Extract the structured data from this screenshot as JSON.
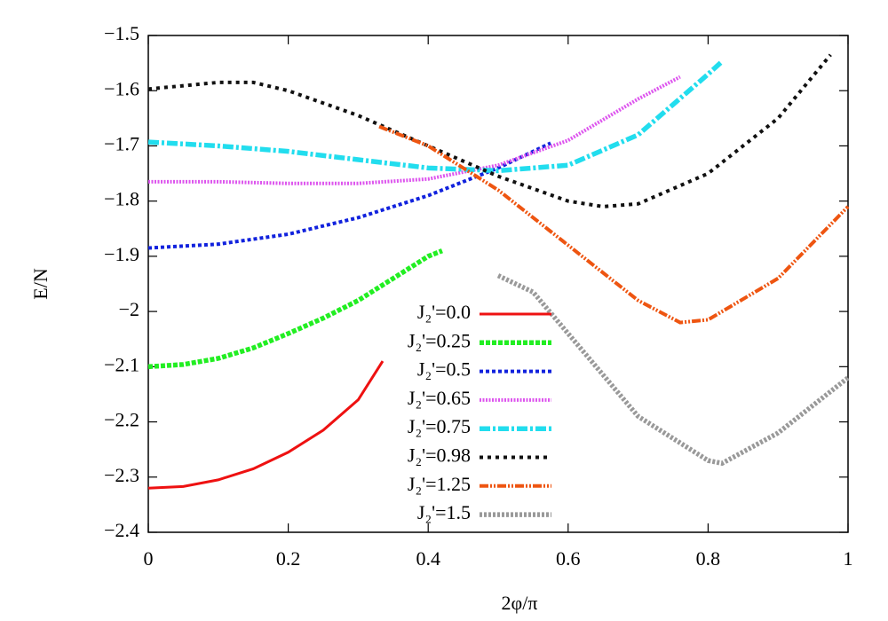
{
  "chart_data": {
    "type": "line",
    "x_label": "2φ/π",
    "y_label": "E/N",
    "xlim": [
      0,
      1
    ],
    "ylim": [
      -2.4,
      -1.5
    ],
    "xticks": [
      0,
      0.2,
      0.4,
      0.6,
      0.8,
      1
    ],
    "yticks": [
      {
        "value": -1.5,
        "label": "−1.5"
      },
      {
        "value": -1.6,
        "label": "−1.6"
      },
      {
        "value": -1.7,
        "label": "−1.7"
      },
      {
        "value": -1.8,
        "label": "−1.8"
      },
      {
        "value": -1.9,
        "label": "−1.9"
      },
      {
        "value": -2,
        "label": "−2"
      },
      {
        "value": -2.1,
        "label": "−2.1"
      },
      {
        "value": -2.2,
        "label": "−2.2"
      },
      {
        "value": -2.3,
        "label": "−2.3"
      },
      {
        "value": -2.4,
        "label": "−2.4"
      }
    ],
    "grid": false,
    "series": [
      {
        "name": "J₂'=0.0",
        "color": "#ee1111",
        "x": [
          0,
          0.05,
          0.1,
          0.15,
          0.2,
          0.25,
          0.3,
          0.335
        ],
        "values": [
          -2.32,
          -2.317,
          -2.305,
          -2.285,
          -2.255,
          -2.215,
          -2.16,
          -2.09
        ]
      },
      {
        "name": "J₂'=0.25",
        "color": "#22ee22",
        "x": [
          0,
          0.05,
          0.1,
          0.15,
          0.2,
          0.25,
          0.3,
          0.35,
          0.4,
          0.42
        ],
        "values": [
          -2.1,
          -2.096,
          -2.085,
          -2.066,
          -2.04,
          -2.012,
          -1.98,
          -1.94,
          -1.9,
          -1.89
        ]
      },
      {
        "name": "J₂'=0.5",
        "color": "#1122dd",
        "x": [
          0,
          0.1,
          0.2,
          0.3,
          0.4,
          0.5,
          0.575
        ],
        "values": [
          -1.885,
          -1.878,
          -1.86,
          -1.83,
          -1.79,
          -1.74,
          -1.695
        ]
      },
      {
        "name": "J₂'=0.65",
        "color": "#dd55ee",
        "x": [
          0,
          0.1,
          0.2,
          0.3,
          0.4,
          0.5,
          0.6,
          0.7,
          0.76
        ],
        "values": [
          -1.765,
          -1.765,
          -1.768,
          -1.768,
          -1.76,
          -1.735,
          -1.69,
          -1.615,
          -1.575
        ]
      },
      {
        "name": "J₂'=0.75",
        "color": "#22ddee",
        "x": [
          0,
          0.1,
          0.2,
          0.3,
          0.4,
          0.5,
          0.6,
          0.7,
          0.8,
          0.82
        ],
        "values": [
          -1.693,
          -1.7,
          -1.71,
          -1.725,
          -1.74,
          -1.745,
          -1.735,
          -1.68,
          -1.57,
          -1.547
        ]
      },
      {
        "name": "J₂'=0.98",
        "color": "#111111",
        "x": [
          0,
          0.1,
          0.15,
          0.2,
          0.3,
          0.4,
          0.5,
          0.6,
          0.65,
          0.7,
          0.8,
          0.9,
          0.975
        ],
        "values": [
          -1.597,
          -1.585,
          -1.585,
          -1.6,
          -1.645,
          -1.7,
          -1.755,
          -1.8,
          -1.81,
          -1.805,
          -1.75,
          -1.65,
          -1.535
        ]
      },
      {
        "name": "J₂'=1.25",
        "color": "#ee5511",
        "x": [
          0.33,
          0.4,
          0.5,
          0.6,
          0.7,
          0.76,
          0.8,
          0.9,
          1
        ],
        "values": [
          -1.665,
          -1.7,
          -1.78,
          -1.88,
          -1.98,
          -2.02,
          -2.015,
          -1.94,
          -1.81
        ]
      },
      {
        "name": "J₂'=1.5",
        "color": "#999999",
        "x": [
          0.5,
          0.55,
          0.6,
          0.7,
          0.8,
          0.82,
          0.9,
          1
        ],
        "values": [
          -1.935,
          -1.965,
          -2.04,
          -2.19,
          -2.27,
          -2.275,
          -2.22,
          -2.12
        ]
      }
    ]
  }
}
